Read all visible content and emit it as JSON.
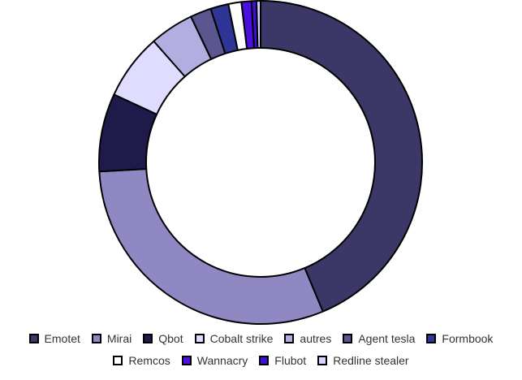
{
  "chart_data": {
    "type": "pie",
    "categories": [
      "Emotet",
      "Mirai",
      "Qbot",
      "Cobalt strike",
      "autres",
      "Agent tesla",
      "Formbook",
      "Remcos",
      "Wannacry",
      "Flubot",
      "Redline stealer"
    ],
    "values": [
      43.7,
      30.4,
      7.8,
      6.6,
      4.4,
      2.1,
      1.8,
      1.3,
      1.0,
      0.5,
      0.4
    ],
    "colors": [
      "#3b3867",
      "#8f88c2",
      "#1e1b4b",
      "#e0dcff",
      "#b3aee0",
      "#5b5690",
      "#2f3596",
      "#ffffff",
      "#4b10e0",
      "#3c10d6",
      "#d8d0ff"
    ],
    "donut": true,
    "legend": "bottom"
  }
}
